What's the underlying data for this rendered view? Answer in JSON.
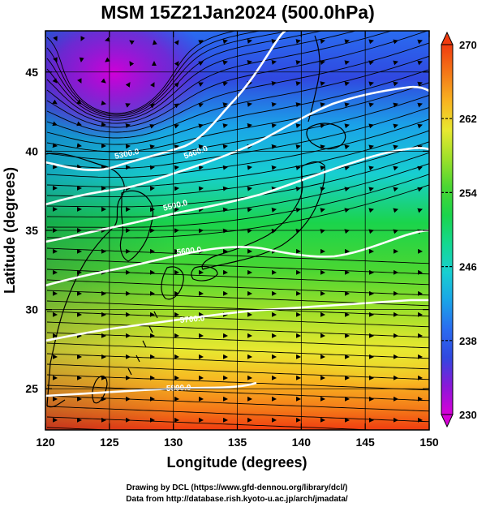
{
  "figure": {
    "title": "MSM 15Z21Jan2024 (500.0hPa)",
    "credit_lines": [
      "Drawing by DCL (https://www.gfd-dennou.org/library/dcl/)",
      "Data from http://database.rish.kyoto-u.ac.jp/arch/jmadata/"
    ]
  },
  "map": {
    "xlabel": "Longitude (degrees)",
    "ylabel": "Latitude  (degrees)",
    "xlim": [
      120,
      150
    ],
    "ylim": [
      22.4,
      47.6
    ],
    "x_ticks": [
      "120",
      "125",
      "130",
      "135",
      "140",
      "145",
      "150"
    ],
    "y_ticks": [
      "25",
      "30",
      "35",
      "40",
      "45"
    ],
    "grid": true,
    "field": "temperature (K)",
    "colorbar": {
      "min": 230,
      "max": 270,
      "tick_labels": [
        "270",
        "262",
        "254",
        "246",
        "238",
        "230"
      ],
      "colors": [
        "#d800d8",
        "#8a18d8",
        "#3048e0",
        "#2a6cf0",
        "#1aa4e8",
        "#18cfd0",
        "#14d890",
        "#1ad44c",
        "#4ad632",
        "#9ee02a",
        "#e8e830",
        "#f8b420",
        "#f47818",
        "#f03c10"
      ]
    },
    "contours": [
      {
        "label": "5300.0"
      },
      {
        "label": "5400.0"
      },
      {
        "label": "5500.0"
      },
      {
        "label": "5600.0"
      },
      {
        "label": "5700.0"
      },
      {
        "label": "5800.0"
      }
    ]
  }
}
